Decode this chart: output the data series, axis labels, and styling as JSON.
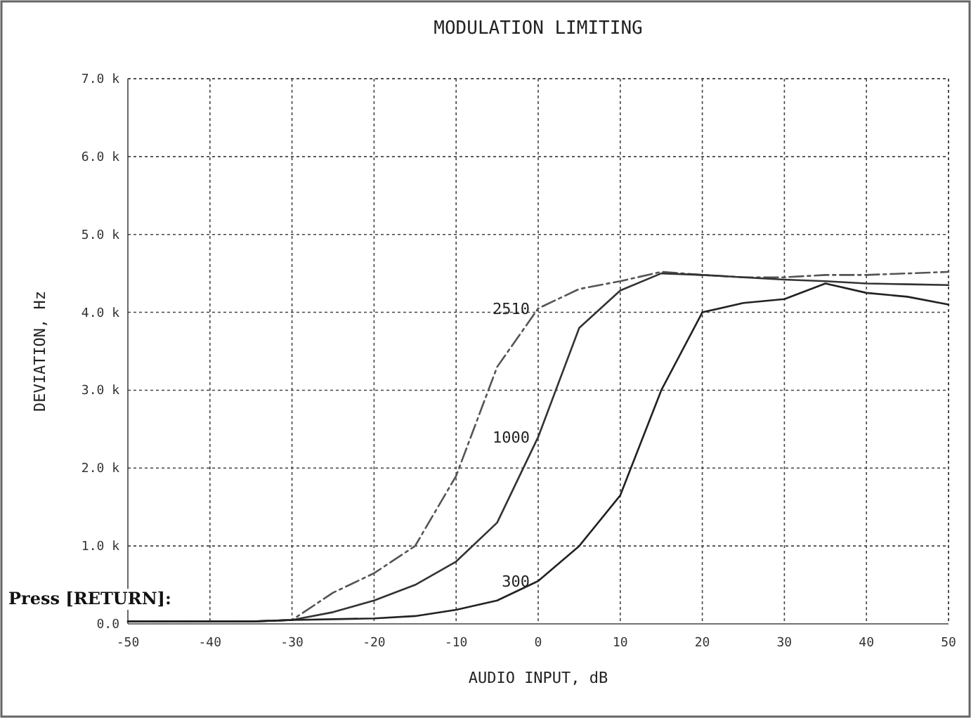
{
  "chart_data": {
    "type": "line",
    "title": "MODULATION LIMITING",
    "xlabel": "AUDIO INPUT, dB",
    "ylabel": "DEVIATION, Hz",
    "x": [
      -50,
      -45,
      -40,
      -35,
      -30,
      -25,
      -20,
      -15,
      -10,
      -5,
      0,
      5,
      10,
      15,
      20,
      25,
      30,
      35,
      40,
      45,
      50
    ],
    "series": [
      {
        "name": "2510",
        "color": "#555555",
        "line_style": "dashdot",
        "values": [
          0.03,
          0.03,
          0.03,
          0.03,
          0.05,
          0.4,
          0.65,
          1.0,
          1.9,
          3.3,
          4.05,
          4.3,
          4.4,
          4.52,
          4.48,
          4.45,
          4.45,
          4.48,
          4.48,
          4.5,
          4.52
        ]
      },
      {
        "name": "1000",
        "color": "#333333",
        "line_style": "solid",
        "values": [
          0.03,
          0.03,
          0.03,
          0.03,
          0.05,
          0.15,
          0.3,
          0.5,
          0.8,
          1.3,
          2.4,
          3.8,
          4.28,
          4.5,
          4.48,
          4.45,
          4.42,
          4.4,
          4.37,
          4.36,
          4.35
        ]
      },
      {
        "name": "300",
        "color": "#222222",
        "line_style": "solid",
        "values": [
          0.03,
          0.03,
          0.03,
          0.03,
          0.05,
          0.06,
          0.07,
          0.1,
          0.18,
          0.3,
          0.55,
          1.0,
          1.65,
          3.0,
          4.0,
          4.12,
          4.17,
          4.37,
          4.25,
          4.2,
          4.1
        ]
      }
    ],
    "xlim": [
      -50,
      50
    ],
    "xticks": [
      -50,
      -40,
      -30,
      -20,
      -10,
      0,
      10,
      20,
      30,
      40,
      50
    ],
    "ylim": [
      0,
      7
    ],
    "yticks": [
      {
        "value": 0,
        "label": "0.0"
      },
      {
        "value": 1,
        "label": "1.0 k"
      },
      {
        "value": 2,
        "label": "2.0 k"
      },
      {
        "value": 3,
        "label": "3.0 k"
      },
      {
        "value": 4,
        "label": "4.0 k"
      },
      {
        "value": 5,
        "label": "5.0 k"
      },
      {
        "value": 6,
        "label": "6.0 k"
      },
      {
        "value": 7,
        "label": "7.0 k"
      }
    ],
    "grid": true,
    "annotations": [
      "Press [RETURN]:"
    ]
  }
}
